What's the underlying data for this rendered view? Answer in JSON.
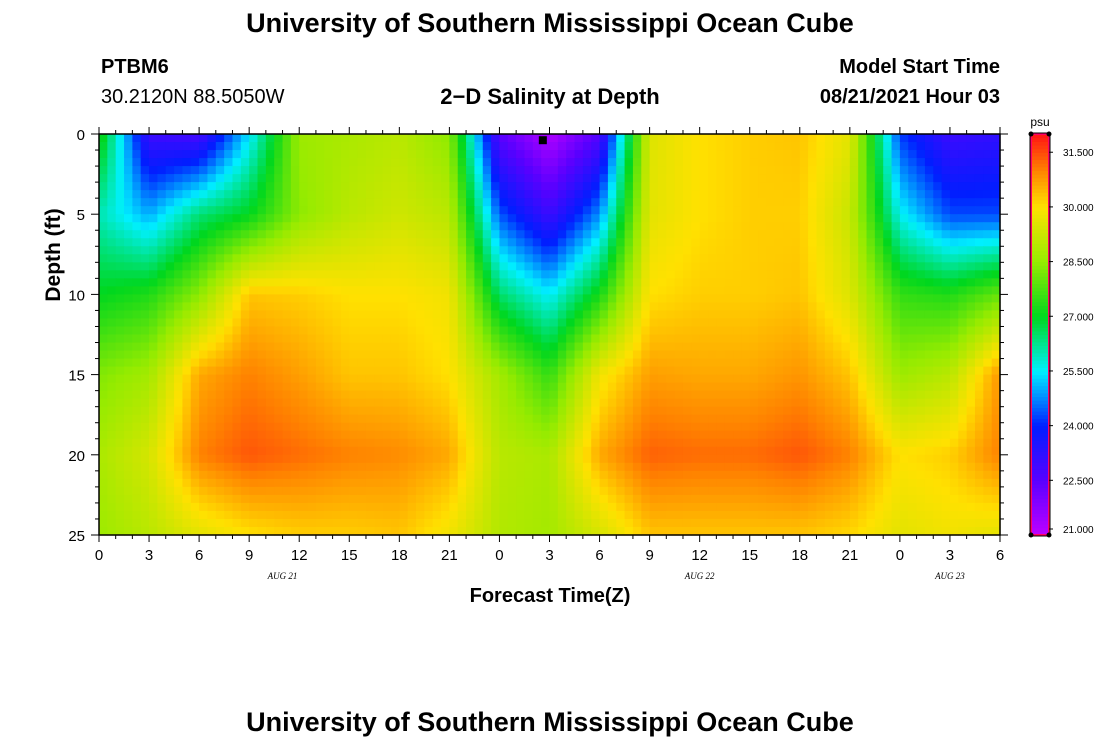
{
  "title_top": "University of Southern Mississippi Ocean Cube",
  "title_bottom": "University of Southern Mississippi Ocean Cube",
  "station": {
    "id": "PTBM6",
    "coords": "30.2120N  88.5050W"
  },
  "subtitle": "2−D Salinity at Depth",
  "model_start": {
    "label": "Model Start Time",
    "value": "08/21/2021 Hour 03"
  },
  "chart_data": {
    "type": "heatmap",
    "title": "2−D Salinity at Depth",
    "xlabel": "Forecast Time(Z)",
    "ylabel": "Depth (ft)",
    "x_range_hours": [
      0,
      54
    ],
    "ylim": [
      0,
      25
    ],
    "y_ticks": [
      0,
      5,
      10,
      15,
      20,
      25
    ],
    "x_tick_hours": [
      0,
      3,
      6,
      9,
      12,
      15,
      18,
      21,
      24,
      27,
      30,
      33,
      36,
      39,
      42,
      45,
      48,
      51,
      54
    ],
    "x_tick_labels": [
      "0",
      "3",
      "6",
      "9",
      "12",
      "15",
      "18",
      "21",
      "0",
      "3",
      "6",
      "9",
      "12",
      "15",
      "18",
      "21",
      "0",
      "3",
      "6"
    ],
    "date_labels": [
      {
        "text": "AUG  21",
        "hour": 11
      },
      {
        "text": "AUG  22",
        "hour": 36
      },
      {
        "text": "AUG  23",
        "hour": 51
      }
    ],
    "colorbar": {
      "unit": "psu",
      "min": 21.0,
      "max": 32.0,
      "ticks": [
        "31.500",
        "30.000",
        "28.500",
        "27.000",
        "25.500",
        "24.000",
        "22.500",
        "21.000"
      ],
      "tick_values": [
        31.5,
        30.0,
        28.5,
        27.0,
        25.5,
        24.0,
        22.5,
        21.0
      ]
    },
    "field_description": "Salinity (psu) vs forecast hour and depth",
    "sample_grid": {
      "hours": [
        0,
        3,
        6,
        9,
        12,
        15,
        18,
        21,
        24,
        27,
        30,
        33,
        36,
        39,
        42,
        45,
        48,
        51,
        54
      ],
      "depths": [
        0,
        5,
        10,
        15,
        20,
        25
      ],
      "salinity": [
        [
          27.4,
          23.0,
          22.8,
          25.4,
          28.6,
          28.8,
          29.0,
          28.4,
          22.5,
          21.2,
          22.6,
          29.5,
          30.0,
          30.2,
          30.3,
          29.6,
          24.2,
          23.0,
          23.2
        ],
        [
          26.0,
          25.0,
          26.4,
          27.0,
          28.4,
          29.0,
          29.3,
          29.0,
          24.4,
          23.0,
          24.8,
          29.6,
          30.0,
          30.2,
          30.2,
          29.2,
          25.6,
          24.3,
          24.3
        ],
        [
          27.0,
          27.3,
          28.4,
          30.3,
          30.2,
          30.0,
          30.0,
          29.8,
          26.5,
          25.5,
          27.2,
          30.0,
          30.2,
          30.2,
          30.3,
          29.5,
          27.5,
          27.3,
          28.0
        ],
        [
          28.3,
          28.7,
          30.6,
          31.0,
          30.7,
          30.3,
          30.3,
          30.0,
          28.7,
          27.5,
          29.8,
          30.7,
          30.6,
          30.6,
          30.8,
          30.3,
          28.6,
          29.0,
          30.8
        ],
        [
          28.8,
          29.4,
          31.0,
          31.4,
          31.2,
          31.0,
          30.9,
          30.6,
          29.0,
          28.8,
          30.6,
          31.3,
          31.2,
          31.2,
          31.4,
          31.0,
          30.0,
          30.2,
          31.0
        ],
        [
          28.6,
          29.0,
          29.6,
          30.0,
          30.2,
          30.2,
          30.3,
          29.8,
          28.9,
          28.7,
          29.4,
          30.3,
          30.3,
          30.3,
          30.3,
          30.1,
          29.6,
          29.8,
          29.6
        ]
      ]
    },
    "marker": {
      "hour": 26.6,
      "depth": 0.2
    }
  },
  "colors": {
    "border": "#000000",
    "colorbar_edge": "#ff0066"
  }
}
